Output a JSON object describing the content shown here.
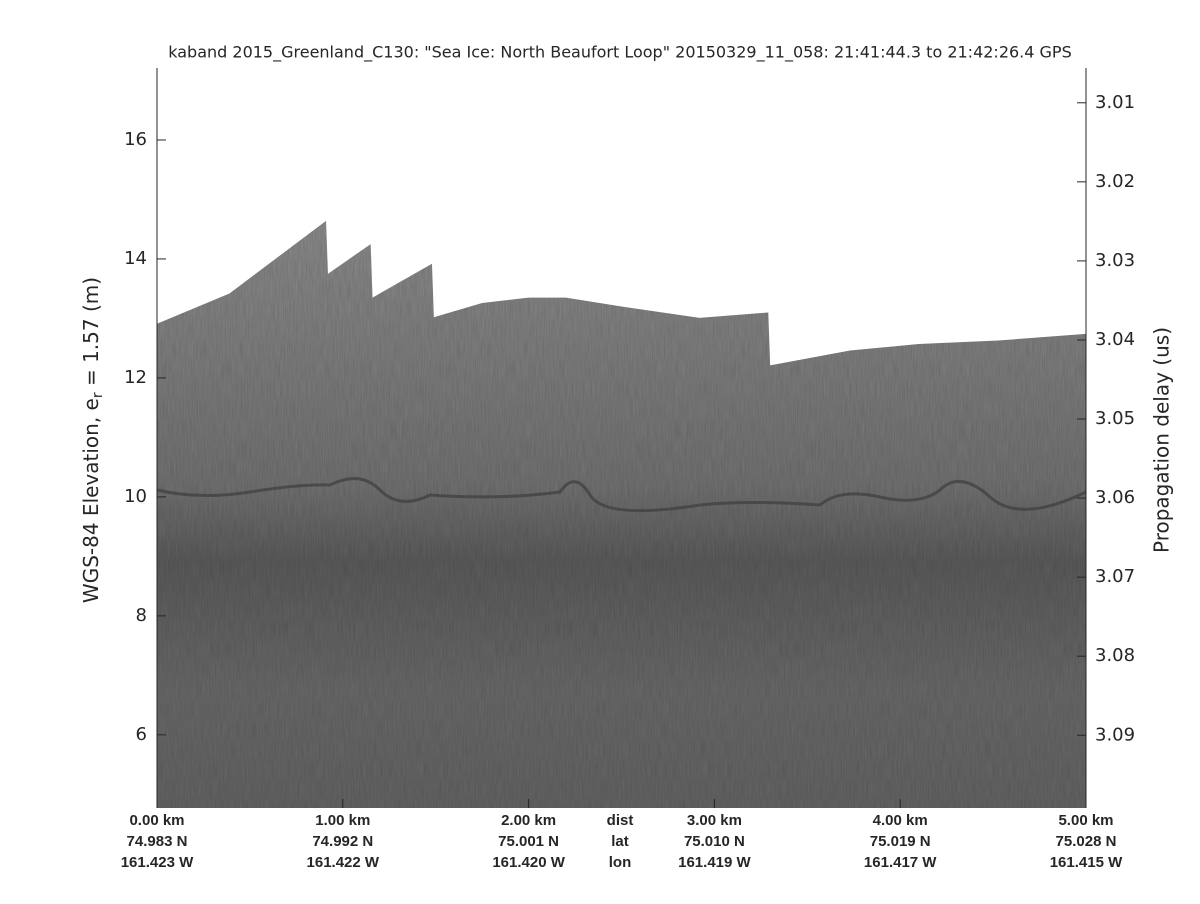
{
  "chart_data": {
    "type": "echogram",
    "title": "kaband 2015_Greenland_C130: \"Sea Ice: North Beaufort Loop\"  20150329_11_058: 21:41:44.3 to 21:42:26.4 GPS",
    "ylabel": {
      "main": "WGS-84 Elevation, e",
      "sub": "r",
      "rest": " = 1.57 (m)"
    },
    "y2label": "Propagation delay (us)",
    "x": [
      0,
      0.39,
      0.91,
      0.92,
      1.15,
      1.16,
      1.48,
      1.49,
      1.75,
      2.0,
      2.2,
      2.5,
      2.92,
      3.29,
      3.3,
      3.73,
      4.1,
      4.53,
      5.0
    ],
    "values": [
      12.91,
      13.42,
      14.64,
      13.75,
      14.25,
      13.35,
      13.92,
      13.02,
      13.26,
      13.35,
      13.35,
      13.2,
      13.01,
      13.1,
      12.21,
      12.46,
      12.57,
      12.63,
      12.74
    ],
    "color": "#7c7c7c",
    "xlim": [
      0,
      5
    ],
    "xticks": [
      {
        "value": 0,
        "label": "0.00 km"
      },
      {
        "value": 1,
        "label": "1.00 km"
      },
      {
        "value": 2,
        "label": "2.00 km"
      },
      {
        "value": 3,
        "label": "3.00 km"
      },
      {
        "value": 4,
        "label": "4.00 km"
      },
      {
        "value": 5,
        "label": "5.00 km"
      }
    ],
    "lat_labels": [
      "74.983 N",
      "74.992 N",
      "75.001 N",
      "75.010 N",
      "75.019 N",
      "75.028 N"
    ],
    "lon_labels": [
      "161.423 W",
      "161.422 W",
      "161.420 W",
      "161.419 W",
      "161.417 W",
      "161.415 W"
    ],
    "row_names": [
      "dist",
      "lat",
      "lon"
    ],
    "ylim": [
      4.77,
      17.21
    ],
    "yticks": [
      6,
      8,
      10,
      12,
      14,
      16
    ],
    "y2lim": [
      3.0992,
      3.0056
    ],
    "y2ticks": [
      3.01,
      3.02,
      3.03,
      3.04,
      3.05,
      3.06,
      3.07,
      3.08,
      3.09
    ]
  }
}
